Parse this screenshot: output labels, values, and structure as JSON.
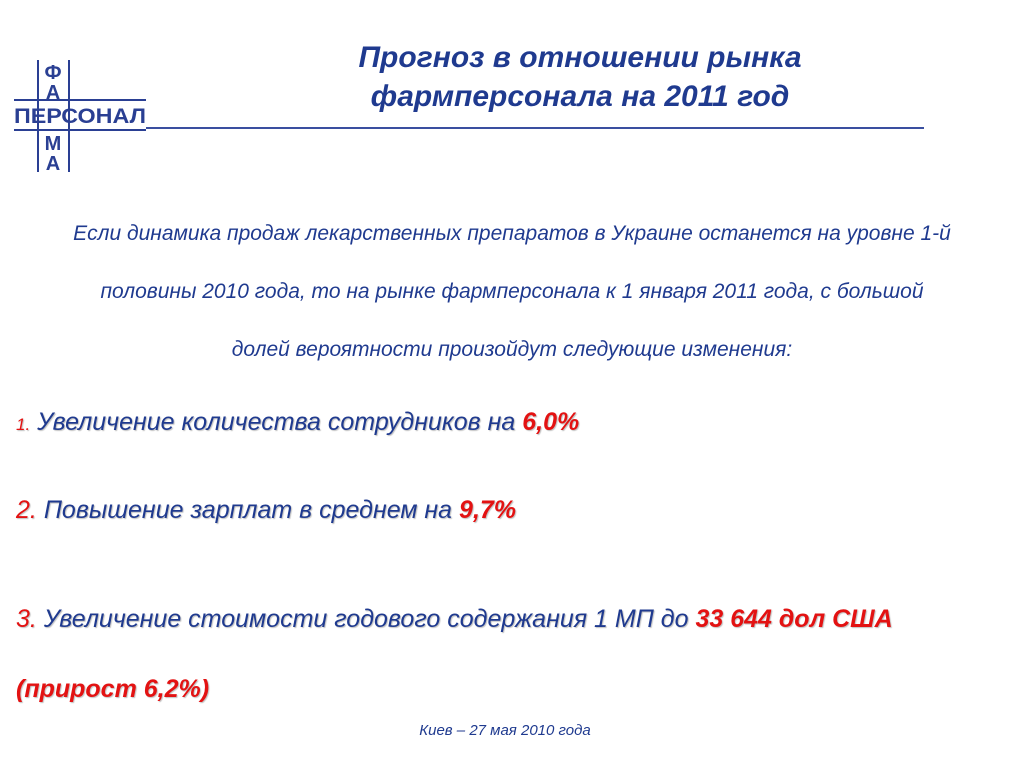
{
  "logo": {
    "letters": [
      "Ф",
      "А",
      "ПЕРСОНАЛ",
      "М",
      "А"
    ],
    "brand_color": "#2a3f93"
  },
  "header": {
    "title_line1": "Прогноз в отношении рынка",
    "title_line2": "фармперсонала на 2011 год"
  },
  "intro": {
    "line1": "Если динамика продаж лекарственных препаратов в Украине останется на уровне 1-й",
    "line2": "половины 2010 года, то на рынке фармперсонала к 1 января 2011 года, с большой",
    "line3": "долей вероятности произойдут следующие изменения:"
  },
  "items": [
    {
      "num": "1.",
      "text": "Увеличение количества сотрудников на ",
      "value": "6,0%"
    },
    {
      "num": "2.",
      "text": "Повышение зарплат в среднем на ",
      "value": "9,7%"
    },
    {
      "num": "3.",
      "text": "Увеличение стоимости годового содержания 1 МП до ",
      "value": "33 644 дол США",
      "continuation": "(прирост 6,2%)"
    }
  ],
  "footer": {
    "text": "Киев – 27 мая 2010 года"
  },
  "colors": {
    "text_blue": "#1f3a8f",
    "accent_red": "#e31212"
  }
}
